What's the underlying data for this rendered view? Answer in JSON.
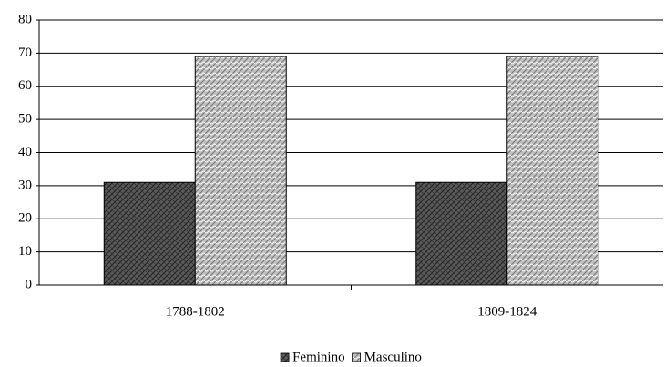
{
  "chart_data": {
    "type": "bar",
    "categories": [
      "1788-1802",
      "1809-1824"
    ],
    "series": [
      {
        "name": "Feminino",
        "color": "#5a5a5a",
        "values": [
          31,
          31
        ]
      },
      {
        "name": "Masculino",
        "color": "#c0c0c0",
        "values": [
          69,
          69
        ]
      }
    ],
    "ylim": [
      0,
      80
    ],
    "yticks": [
      0,
      10,
      20,
      30,
      40,
      50,
      60,
      70,
      80
    ],
    "grid": true,
    "legend": "bottom"
  }
}
